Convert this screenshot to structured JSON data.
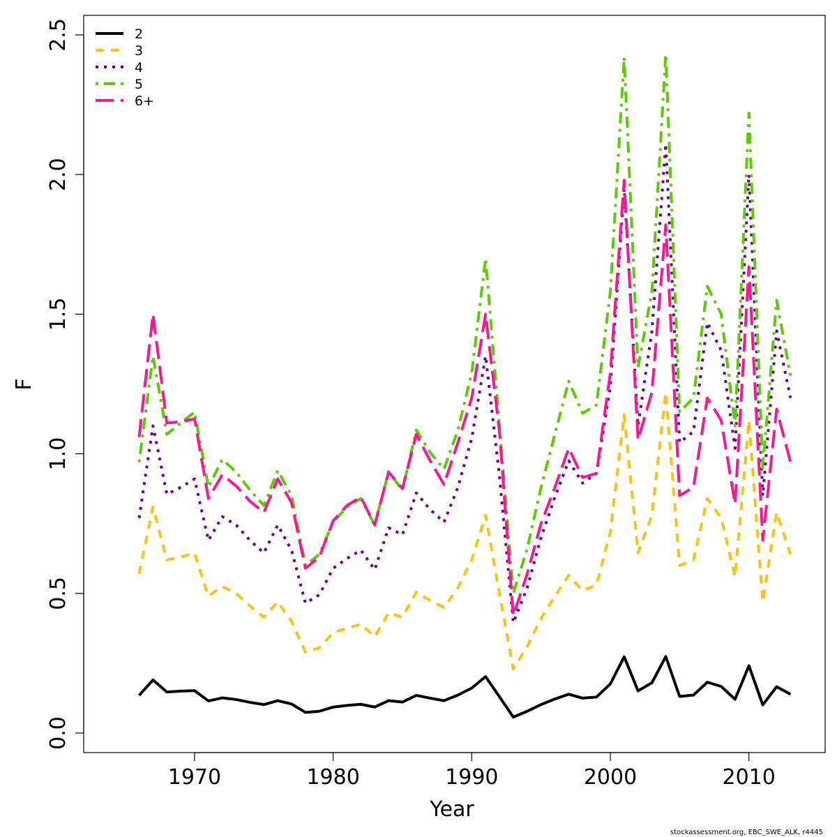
{
  "chart_data": {
    "type": "line",
    "title": "",
    "xlabel": "Year",
    "ylabel": "F",
    "xlim": [
      1962,
      2015.5
    ],
    "ylim": [
      -0.07,
      2.57
    ],
    "xticks": [
      1970,
      1980,
      1990,
      2000,
      2010
    ],
    "xtick_labels": [
      "1970",
      "1980",
      "1990",
      "2000",
      "2010"
    ],
    "yticks": [
      0,
      0.5,
      1,
      1.5,
      2,
      2.5
    ],
    "ytick_labels": [
      "0.0",
      "0.5",
      "1.0",
      "1.5",
      "2.0",
      "2.5"
    ],
    "x": [
      1966,
      1967,
      1968,
      1969,
      1970,
      1971,
      1972,
      1973,
      1974,
      1975,
      1976,
      1977,
      1978,
      1979,
      1980,
      1981,
      1982,
      1983,
      1984,
      1985,
      1986,
      1987,
      1988,
      1989,
      1990,
      1991,
      1992,
      1993,
      1994,
      1995,
      1996,
      1997,
      1998,
      1999,
      2000,
      2001,
      2002,
      2003,
      2004,
      2005,
      2006,
      2007,
      2008,
      2009,
      2010,
      2011,
      2012,
      2013
    ],
    "legend_position": "top-left",
    "series": [
      {
        "name": "2",
        "color": "#000000",
        "dash": "solid",
        "values": [
          0.135,
          0.19,
          0.147,
          0.15,
          0.152,
          0.115,
          0.126,
          0.12,
          0.11,
          0.102,
          0.116,
          0.104,
          0.074,
          0.078,
          0.093,
          0.099,
          0.103,
          0.093,
          0.116,
          0.111,
          0.135,
          0.125,
          0.116,
          0.136,
          0.161,
          0.202,
          0.13,
          0.057,
          0.078,
          0.102,
          0.122,
          0.139,
          0.125,
          0.129,
          0.176,
          0.273,
          0.151,
          0.18,
          0.274,
          0.131,
          0.136,
          0.182,
          0.167,
          0.121,
          0.241,
          0.101,
          0.166,
          0.139
        ]
      },
      {
        "name": "3",
        "color": "#FFC20A",
        "dash": "dashed",
        "values": [
          0.57,
          0.81,
          0.62,
          0.63,
          0.645,
          0.49,
          0.525,
          0.5,
          0.455,
          0.415,
          0.47,
          0.4,
          0.29,
          0.305,
          0.36,
          0.375,
          0.39,
          0.345,
          0.43,
          0.415,
          0.505,
          0.475,
          0.45,
          0.52,
          0.62,
          0.78,
          0.5,
          0.23,
          0.31,
          0.41,
          0.49,
          0.565,
          0.51,
          0.53,
          0.72,
          1.14,
          0.645,
          0.78,
          1.22,
          0.6,
          0.62,
          0.84,
          0.77,
          0.56,
          1.12,
          0.47,
          0.79,
          0.64
        ]
      },
      {
        "name": "4",
        "color": "#6A0096",
        "dash": "dotted",
        "values": [
          0.77,
          1.1,
          0.855,
          0.88,
          0.91,
          0.69,
          0.775,
          0.745,
          0.69,
          0.645,
          0.745,
          0.655,
          0.465,
          0.495,
          0.59,
          0.625,
          0.655,
          0.585,
          0.735,
          0.71,
          0.86,
          0.8,
          0.755,
          0.88,
          1.055,
          1.35,
          0.92,
          0.395,
          0.52,
          0.7,
          0.845,
          0.975,
          0.895,
          0.93,
          1.24,
          1.95,
          1.1,
          1.44,
          2.11,
          1.04,
          1.08,
          1.47,
          1.37,
          1.02,
          2.0,
          0.85,
          1.44,
          1.2
        ]
      },
      {
        "name": "5",
        "color": "#5ACC00",
        "dash": "dotdash",
        "values": [
          0.97,
          1.35,
          1.07,
          1.11,
          1.15,
          0.88,
          0.98,
          0.935,
          0.87,
          0.815,
          0.94,
          0.85,
          0.6,
          0.64,
          0.755,
          0.81,
          0.84,
          0.745,
          0.935,
          0.87,
          1.085,
          1.005,
          0.945,
          1.085,
          1.29,
          1.7,
          1.1,
          0.5,
          0.66,
          0.88,
          1.07,
          1.26,
          1.145,
          1.175,
          1.58,
          2.42,
          1.31,
          1.58,
          2.43,
          1.15,
          1.2,
          1.6,
          1.5,
          1.1,
          2.22,
          0.95,
          1.55,
          1.28
        ]
      },
      {
        "name": "6+",
        "color": "#FF1493",
        "dash": "longdash",
        "values": [
          1.06,
          1.5,
          1.11,
          1.115,
          1.125,
          0.84,
          0.925,
          0.885,
          0.83,
          0.79,
          0.91,
          0.825,
          0.59,
          0.63,
          0.76,
          0.815,
          0.845,
          0.745,
          0.935,
          0.875,
          1.07,
          0.975,
          0.89,
          1.04,
          1.2,
          1.5,
          1.08,
          0.42,
          0.57,
          0.75,
          0.88,
          1.02,
          0.915,
          0.93,
          1.29,
          1.98,
          1.05,
          1.22,
          1.82,
          0.85,
          0.88,
          1.2,
          1.12,
          0.82,
          1.67,
          0.69,
          1.16,
          0.97
        ]
      }
    ]
  },
  "credit": "stockassessment.org, EBC_SWE_ALK, r4445"
}
